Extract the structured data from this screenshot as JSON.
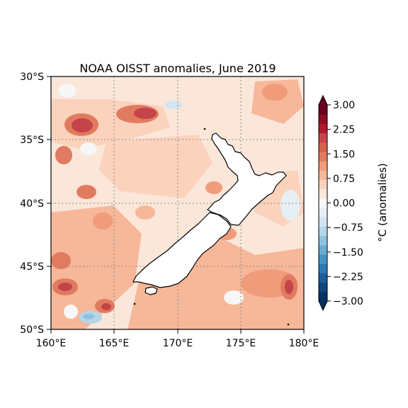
{
  "title": "NOAA OISST anomalies, June 2019",
  "map": {
    "lon_range": [
      160,
      180
    ],
    "lat_range": [
      -50,
      -30
    ],
    "x_ticks": [
      "160°E",
      "165°E",
      "170°E",
      "175°E",
      "180°E"
    ],
    "y_ticks": [
      "30°S",
      "35°S",
      "40°S",
      "45°S",
      "50°S"
    ],
    "gridlines": "dotted",
    "land_color": "#ffffff",
    "coastline_color": "#000000"
  },
  "colorbar": {
    "label": "°C (anomalies)",
    "tick_labels": [
      "3.00",
      "2.25",
      "1.50",
      "0.75",
      "0.00",
      "−0.75",
      "−1.50",
      "−2.25",
      "−3.00"
    ],
    "range": [
      -3,
      3
    ],
    "extend": "both",
    "colormap": "RdBu_r",
    "colors": [
      "#053061",
      "#13457c",
      "#1f5d9a",
      "#2e78b5",
      "#4393c3",
      "#6aacd0",
      "#8fc2dd",
      "#b3d6e8",
      "#d1e5f0",
      "#e6eff4",
      "#f7f7f7",
      "#fbe6da",
      "#fbd2bc",
      "#f7b799",
      "#f09c7b",
      "#e07b5f",
      "#d6604d",
      "#c4444a",
      "#b2182b",
      "#8c0d25",
      "#67001f"
    ]
  }
}
